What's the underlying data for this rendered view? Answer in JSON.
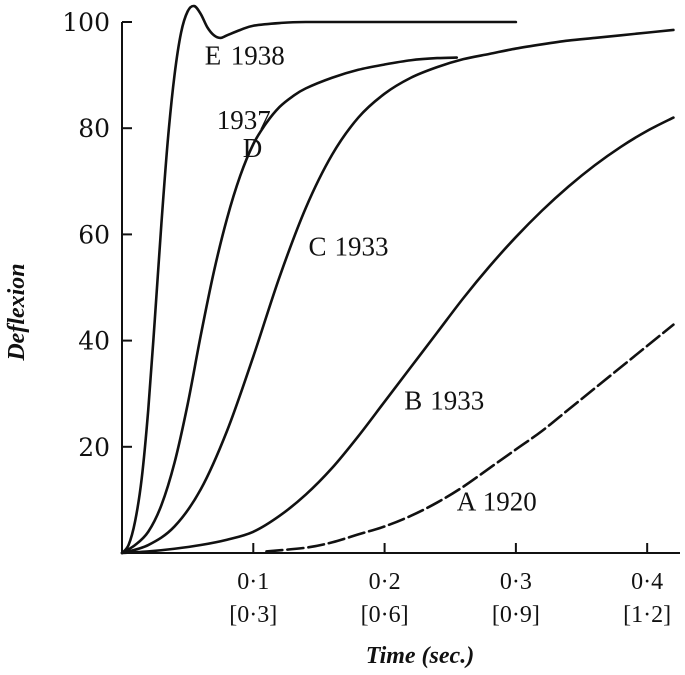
{
  "chart_data": {
    "type": "line",
    "xlabel": "Time (sec.)",
    "ylabel": "Deflexion",
    "xlim": [
      0,
      0.425
    ],
    "ylim": [
      0,
      100
    ],
    "grid": false,
    "x_ticks": [
      {
        "value": 0.1,
        "label": "0·1",
        "alt_label": "[0·3]"
      },
      {
        "value": 0.2,
        "label": "0·2",
        "alt_label": "[0·6]"
      },
      {
        "value": 0.3,
        "label": "0·3",
        "alt_label": "[0·9]"
      },
      {
        "value": 0.4,
        "label": "0·4",
        "alt_label": "[1·2]"
      }
    ],
    "y_ticks": [
      {
        "value": 20,
        "label": "20"
      },
      {
        "value": 40,
        "label": "40"
      },
      {
        "value": 60,
        "label": "60"
      },
      {
        "value": 80,
        "label": "80"
      },
      {
        "value": 100,
        "label": "100"
      }
    ],
    "series": [
      {
        "id": "E",
        "letter": "E",
        "year": "1938",
        "dashed": false,
        "points": [
          [
            0,
            0
          ],
          [
            0.005,
            1.5
          ],
          [
            0.01,
            6
          ],
          [
            0.015,
            14
          ],
          [
            0.02,
            27
          ],
          [
            0.025,
            44
          ],
          [
            0.03,
            62
          ],
          [
            0.035,
            78
          ],
          [
            0.04,
            90
          ],
          [
            0.045,
            98
          ],
          [
            0.05,
            102
          ],
          [
            0.055,
            103
          ],
          [
            0.06,
            101.5
          ],
          [
            0.065,
            99
          ],
          [
            0.07,
            97.5
          ],
          [
            0.075,
            97
          ],
          [
            0.08,
            97.5
          ],
          [
            0.09,
            98.5
          ],
          [
            0.1,
            99.3
          ],
          [
            0.12,
            99.8
          ],
          [
            0.14,
            100
          ],
          [
            0.2,
            100
          ],
          [
            0.3,
            100
          ]
        ]
      },
      {
        "id": "D",
        "letter": "D",
        "year": "1937",
        "dashed": false,
        "points": [
          [
            0,
            0
          ],
          [
            0.01,
            1.5
          ],
          [
            0.02,
            4
          ],
          [
            0.03,
            9
          ],
          [
            0.04,
            17
          ],
          [
            0.05,
            28
          ],
          [
            0.06,
            41
          ],
          [
            0.07,
            53
          ],
          [
            0.08,
            63
          ],
          [
            0.09,
            71
          ],
          [
            0.1,
            77
          ],
          [
            0.11,
            81
          ],
          [
            0.12,
            84
          ],
          [
            0.13,
            86
          ],
          [
            0.14,
            87.5
          ],
          [
            0.16,
            89.5
          ],
          [
            0.18,
            91
          ],
          [
            0.2,
            92
          ],
          [
            0.22,
            92.8
          ],
          [
            0.24,
            93.2
          ],
          [
            0.255,
            93.3
          ]
        ]
      },
      {
        "id": "C",
        "letter": "C",
        "year": "1933",
        "dashed": false,
        "points": [
          [
            0,
            0
          ],
          [
            0.02,
            1.5
          ],
          [
            0.04,
            5
          ],
          [
            0.06,
            12
          ],
          [
            0.08,
            23
          ],
          [
            0.1,
            37
          ],
          [
            0.12,
            52
          ],
          [
            0.14,
            65
          ],
          [
            0.16,
            75
          ],
          [
            0.18,
            82
          ],
          [
            0.2,
            86.5
          ],
          [
            0.22,
            89.5
          ],
          [
            0.24,
            91.5
          ],
          [
            0.26,
            93
          ],
          [
            0.28,
            94
          ],
          [
            0.3,
            95
          ],
          [
            0.32,
            95.8
          ],
          [
            0.34,
            96.5
          ],
          [
            0.36,
            97
          ],
          [
            0.38,
            97.5
          ],
          [
            0.4,
            98
          ],
          [
            0.42,
            98.5
          ]
        ]
      },
      {
        "id": "B",
        "letter": "B",
        "year": "1933",
        "dashed": false,
        "points": [
          [
            0,
            0
          ],
          [
            0.02,
            0.3
          ],
          [
            0.04,
            0.8
          ],
          [
            0.06,
            1.5
          ],
          [
            0.08,
            2.5
          ],
          [
            0.1,
            4
          ],
          [
            0.12,
            7
          ],
          [
            0.14,
            11
          ],
          [
            0.16,
            16
          ],
          [
            0.18,
            22
          ],
          [
            0.2,
            28.5
          ],
          [
            0.22,
            35
          ],
          [
            0.24,
            41.5
          ],
          [
            0.26,
            48
          ],
          [
            0.28,
            54
          ],
          [
            0.3,
            59.5
          ],
          [
            0.32,
            64.5
          ],
          [
            0.34,
            69
          ],
          [
            0.36,
            73
          ],
          [
            0.38,
            76.5
          ],
          [
            0.4,
            79.5
          ],
          [
            0.42,
            82
          ]
        ]
      },
      {
        "id": "A",
        "letter": "A",
        "year": "1920",
        "dashed": true,
        "points": [
          [
            0.11,
            0.3
          ],
          [
            0.14,
            1
          ],
          [
            0.16,
            2
          ],
          [
            0.18,
            3.5
          ],
          [
            0.2,
            5
          ],
          [
            0.22,
            7
          ],
          [
            0.24,
            9.5
          ],
          [
            0.26,
            12.5
          ],
          [
            0.28,
            16
          ],
          [
            0.3,
            19.5
          ],
          [
            0.32,
            23
          ],
          [
            0.34,
            27
          ],
          [
            0.36,
            31
          ],
          [
            0.38,
            35
          ],
          [
            0.4,
            39
          ],
          [
            0.42,
            43
          ]
        ]
      }
    ],
    "annotations": {
      "E": {
        "x": 0.063,
        "y": 92
      },
      "D": {
        "x": 0.095,
        "y": 78
      },
      "C": {
        "x": 0.142,
        "y": 56
      },
      "B": {
        "x": 0.215,
        "y": 27
      },
      "A": {
        "x": 0.255,
        "y": 8
      }
    }
  }
}
